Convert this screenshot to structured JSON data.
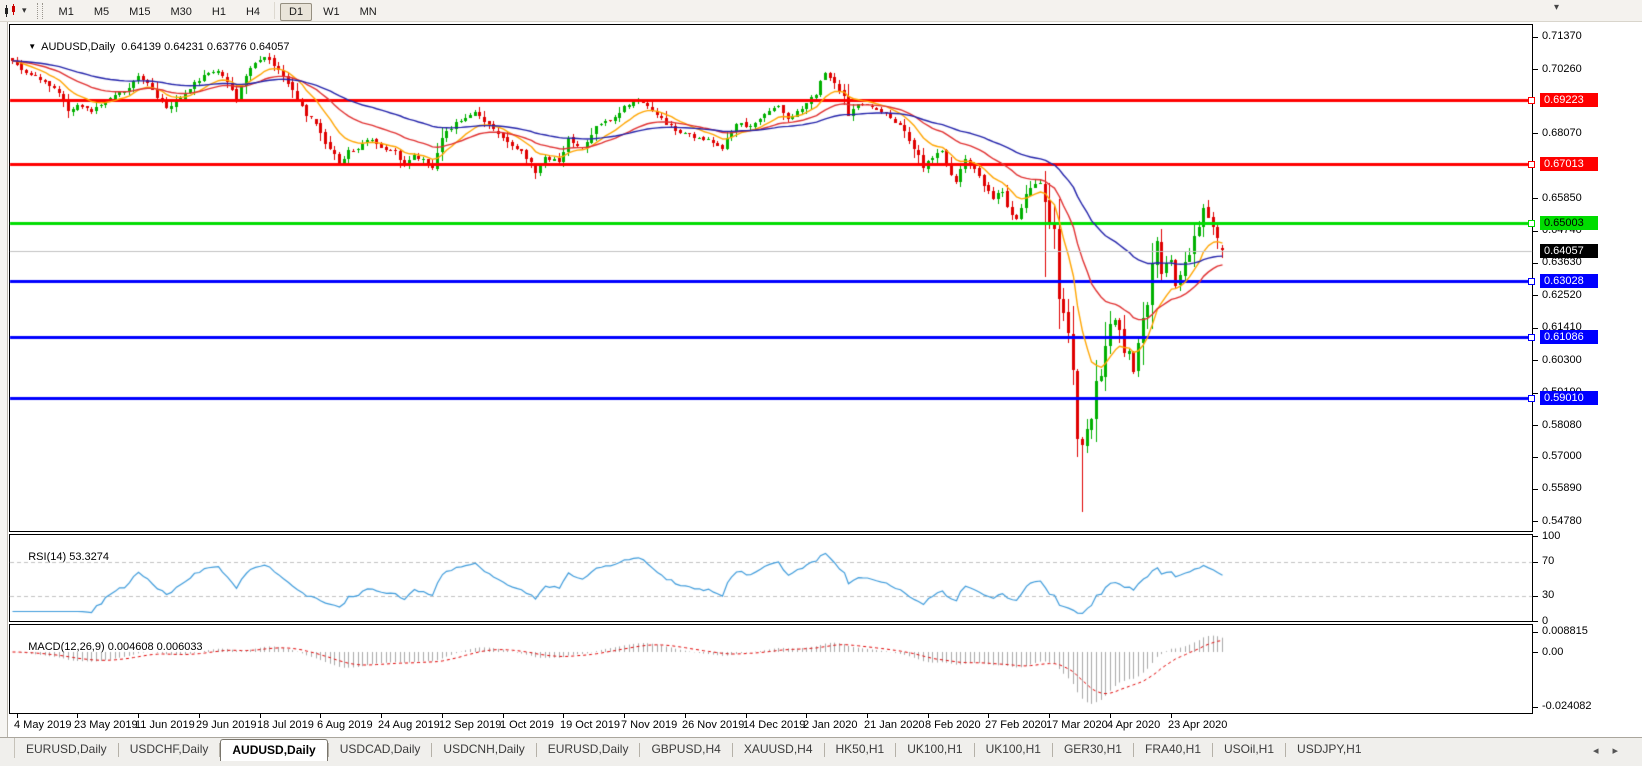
{
  "toolbar": {
    "timeframes": [
      "M1",
      "M5",
      "M15",
      "M30",
      "H1",
      "H4",
      "D1",
      "W1",
      "MN"
    ],
    "active_timeframe": "D1"
  },
  "chart": {
    "symbol_period": "AUDUSD,Daily",
    "ohlc": {
      "open": "0.64139",
      "high": "0.64231",
      "low": "0.63776",
      "close": "0.64057"
    }
  },
  "indicators": {
    "rsi": {
      "label": "RSI(14)",
      "value": "53.3274"
    },
    "macd": {
      "label": "MACD(12,26,9)",
      "value": "0.004608",
      "signal_value": "0.006033"
    }
  },
  "tabs": {
    "items": [
      "EURUSD,Daily",
      "USDCHF,Daily",
      "AUDUSD,Daily",
      "USDCAD,Daily",
      "USDCNH,Daily",
      "EURUSD,Daily",
      "GBPUSD,H4",
      "XAUUSD,H4",
      "HK50,H1",
      "UK100,H1",
      "UK100,H1",
      "GER30,H1",
      "FRA40,H1",
      "USOil,H1",
      "USDJPY,H1"
    ],
    "active_index": 2
  },
  "chart_data": {
    "type": "candlestick",
    "symbol": "AUDUSD",
    "period": "Daily",
    "last_ohlc": {
      "open": 0.64139,
      "high": 0.64231,
      "low": 0.63776,
      "close": 0.64057
    },
    "visible_price_range": [
      0.5444,
      0.7181
    ],
    "price_axis_ticks": [
      "0.71370",
      "0.70260",
      "0.68070",
      "0.65850",
      "0.64740",
      "0.63630",
      "0.62520",
      "0.61410",
      "0.60300",
      "0.59190",
      "0.58080",
      "0.57000",
      "0.55890",
      "0.54780"
    ],
    "x_labels": [
      "4 May 2019",
      "23 May 2019",
      "11 Jun 2019",
      "29 Jun 2019",
      "18 Jul 2019",
      "6 Aug 2019",
      "24 Aug 2019",
      "12 Sep 2019",
      "1 Oct 2019",
      "19 Oct 2019",
      "7 Nov 2019",
      "26 Nov 2019",
      "14 Dec 2019",
      "2 Jan 2020",
      "21 Jan 2020",
      "8 Feb 2020",
      "27 Feb 2020",
      "17 Mar 2020",
      "4 Apr 2020",
      "23 Apr 2020"
    ],
    "n_candles": 260,
    "up_color": "#00B000",
    "down_color": "#DF0000",
    "close_anchors": [
      [
        0,
        0.705
      ],
      [
        3,
        0.7012
      ],
      [
        6,
        0.6995
      ],
      [
        10,
        0.6942
      ],
      [
        12,
        0.688
      ],
      [
        14,
        0.6902
      ],
      [
        17,
        0.6882
      ],
      [
        20,
        0.692
      ],
      [
        22,
        0.6935
      ],
      [
        25,
        0.6958
      ],
      [
        27,
        0.7
      ],
      [
        30,
        0.6962
      ],
      [
        33,
        0.689
      ],
      [
        36,
        0.6932
      ],
      [
        39,
        0.698
      ],
      [
        42,
        0.7015
      ],
      [
        44,
        0.7022
      ],
      [
        46,
        0.6975
      ],
      [
        48,
        0.6922
      ],
      [
        50,
        0.7012
      ],
      [
        52,
        0.7042
      ],
      [
        54,
        0.7068
      ],
      [
        56,
        0.704
      ],
      [
        58,
        0.7
      ],
      [
        60,
        0.6952
      ],
      [
        63,
        0.6872
      ],
      [
        65,
        0.6845
      ],
      [
        66,
        0.68
      ],
      [
        68,
        0.6756
      ],
      [
        70,
        0.67
      ],
      [
        72,
        0.6745
      ],
      [
        74,
        0.6758
      ],
      [
        76,
        0.6788
      ],
      [
        79,
        0.6756
      ],
      [
        82,
        0.6742
      ],
      [
        84,
        0.669
      ],
      [
        86,
        0.673
      ],
      [
        88,
        0.6712
      ],
      [
        90,
        0.6685
      ],
      [
        92,
        0.679
      ],
      [
        95,
        0.6845
      ],
      [
        97,
        0.6862
      ],
      [
        99,
        0.688
      ],
      [
        102,
        0.6832
      ],
      [
        105,
        0.679
      ],
      [
        107,
        0.6762
      ],
      [
        109,
        0.6748
      ],
      [
        111,
        0.67
      ],
      [
        112,
        0.6672
      ],
      [
        114,
        0.6726
      ],
      [
        117,
        0.671
      ],
      [
        119,
        0.679
      ],
      [
        122,
        0.6756
      ],
      [
        125,
        0.6832
      ],
      [
        128,
        0.6852
      ],
      [
        131,
        0.6895
      ],
      [
        134,
        0.692
      ],
      [
        137,
        0.689
      ],
      [
        140,
        0.6842
      ],
      [
        143,
        0.6812
      ],
      [
        146,
        0.6792
      ],
      [
        149,
        0.6786
      ],
      [
        152,
        0.6758
      ],
      [
        155,
        0.6845
      ],
      [
        158,
        0.683
      ],
      [
        161,
        0.6876
      ],
      [
        164,
        0.69
      ],
      [
        166,
        0.6852
      ],
      [
        168,
        0.688
      ],
      [
        170,
        0.6906
      ],
      [
        172,
        0.6945
      ],
      [
        174,
        0.7015
      ],
      [
        176,
        0.6986
      ],
      [
        178,
        0.693
      ],
      [
        179,
        0.6872
      ],
      [
        181,
        0.6906
      ],
      [
        184,
        0.69
      ],
      [
        186,
        0.6886
      ],
      [
        189,
        0.6846
      ],
      [
        191,
        0.6812
      ],
      [
        193,
        0.6756
      ],
      [
        195,
        0.6692
      ],
      [
        197,
        0.6722
      ],
      [
        199,
        0.6746
      ],
      [
        201,
        0.6672
      ],
      [
        202,
        0.6642
      ],
      [
        204,
        0.6722
      ],
      [
        206,
        0.6682
      ],
      [
        208,
        0.6626
      ],
      [
        210,
        0.6586
      ],
      [
        212,
        0.6616
      ],
      [
        213,
        0.6546
      ],
      [
        215,
        0.6516
      ],
      [
        216,
        0.654
      ],
      [
        217,
        0.6596
      ],
      [
        218,
        0.6622
      ],
      [
        220,
        0.664
      ],
      [
        221,
        0.6583
      ],
      [
        222,
        0.65
      ],
      [
        223,
        0.649
      ],
      [
        224,
        0.623
      ],
      [
        225,
        0.618
      ],
      [
        226,
        0.612
      ],
      [
        227,
        0.599
      ],
      [
        228,
        0.577
      ],
      [
        229,
        0.574
      ],
      [
        230,
        0.58
      ],
      [
        231,
        0.582
      ],
      [
        232,
        0.596
      ],
      [
        233,
        0.597
      ],
      [
        234,
        0.6075
      ],
      [
        235,
        0.616
      ],
      [
        236,
        0.617
      ],
      [
        237,
        0.614
      ],
      [
        238,
        0.606
      ],
      [
        239,
        0.6058
      ],
      [
        240,
        0.599
      ],
      [
        241,
        0.6085
      ],
      [
        242,
        0.6165
      ],
      [
        243,
        0.623
      ],
      [
        244,
        0.635
      ],
      [
        245,
        0.644
      ],
      [
        246,
        0.632
      ],
      [
        247,
        0.636
      ],
      [
        248,
        0.6365
      ],
      [
        249,
        0.629
      ],
      [
        250,
        0.632
      ],
      [
        251,
        0.637
      ],
      [
        252,
        0.6392
      ],
      [
        253,
        0.6465
      ],
      [
        254,
        0.649
      ],
      [
        255,
        0.655
      ],
      [
        256,
        0.652
      ],
      [
        257,
        0.6478
      ],
      [
        258,
        0.644
      ],
      [
        259,
        0.64057
      ]
    ],
    "special_candles": {
      "221": {
        "low": 0.6313
      },
      "229": {
        "low": 0.551
      },
      "259": {
        "open": 0.64139,
        "high": 0.64231,
        "low": 0.63776,
        "close": 0.64057
      }
    },
    "moving_averages": [
      {
        "period": 10,
        "color": "#FFA500"
      },
      {
        "period": 25,
        "color": "#E03030"
      },
      {
        "period": 55,
        "color": "#2222AA"
      }
    ],
    "horizontal_lines": [
      {
        "price": 0.69223,
        "label": "0.69223",
        "color": "#FF0000",
        "text_color": "#FFFFFF"
      },
      {
        "price": 0.67013,
        "label": "0.67013",
        "color": "#FF0000",
        "text_color": "#FFFFFF"
      },
      {
        "price": 0.65003,
        "label": "0.65003",
        "color": "#00DD00",
        "text_color": "#000000"
      },
      {
        "price": 0.63028,
        "label": "0.63028",
        "color": "#0000FF",
        "text_color": "#FFFFFF"
      },
      {
        "price": 0.61086,
        "label": "0.61086",
        "color": "#0000FF",
        "text_color": "#FFFFFF"
      },
      {
        "price": 0.5901,
        "label": "0.59010",
        "color": "#0000FF",
        "text_color": "#FFFFFF"
      }
    ],
    "bid_line": {
      "price": 0.64057,
      "label": "0.64057",
      "line_color": "#C0C0C0",
      "badge_color": "#000000",
      "text_color": "#FFFFFF"
    },
    "rsi": {
      "period": 14,
      "color": "#3E9BDB",
      "levels": [
        70,
        30
      ],
      "axis_ticks": [
        "100",
        "70",
        "30",
        "0"
      ],
      "level_color": "#C0C0C0"
    },
    "macd": {
      "fast": 12,
      "slow": 26,
      "signal": 9,
      "histogram_color": "#A9A9A9",
      "signal_color": "#E00000",
      "axis_ticks": [
        "0.008815",
        "0.00",
        "-0.024082"
      ]
    }
  }
}
